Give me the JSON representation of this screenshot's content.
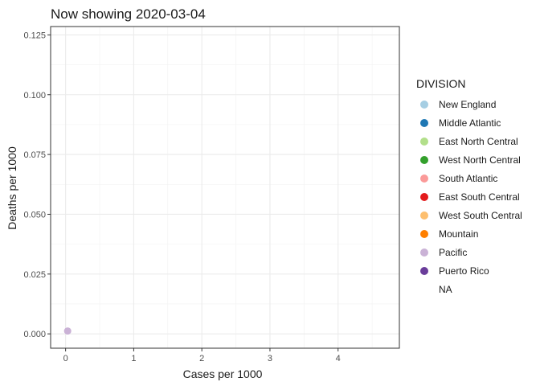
{
  "chart_data": {
    "type": "scatter",
    "title": "Now showing 2020-03-04",
    "xlabel": "Cases per 1000",
    "ylabel": "Deaths per 1000",
    "xlim": [
      -0.22,
      4.9
    ],
    "ylim": [
      -0.006,
      0.1285
    ],
    "x_ticks": [
      0,
      1,
      2,
      3,
      4
    ],
    "y_ticks": [
      0.0,
      0.025,
      0.05,
      0.075,
      0.1,
      0.125
    ],
    "y_tick_labels": [
      "0.000",
      "0.025",
      "0.050",
      "0.075",
      "0.100",
      "0.125"
    ],
    "grid": true,
    "legend_title": "DIVISION",
    "legend_position": "right",
    "legend": [
      {
        "name": "New England",
        "color": "#A6CEE3"
      },
      {
        "name": "Middle Atlantic",
        "color": "#1F78B4"
      },
      {
        "name": "East North Central",
        "color": "#B2DF8A"
      },
      {
        "name": "West North Central",
        "color": "#33A02C"
      },
      {
        "name": "South Atlantic",
        "color": "#FB9A99"
      },
      {
        "name": "East South Central",
        "color": "#E31A1C"
      },
      {
        "name": "West South Central",
        "color": "#FDBF6F"
      },
      {
        "name": "Mountain",
        "color": "#FF7F00"
      },
      {
        "name": "Pacific",
        "color": "#CAB2D6"
      },
      {
        "name": "Puerto Rico",
        "color": "#6A3D9A"
      },
      {
        "name": "NA",
        "color": ""
      }
    ],
    "points": [
      {
        "x": 0.03,
        "y": 0.0012,
        "division": "Pacific",
        "color": "#CAB2D6"
      }
    ]
  }
}
